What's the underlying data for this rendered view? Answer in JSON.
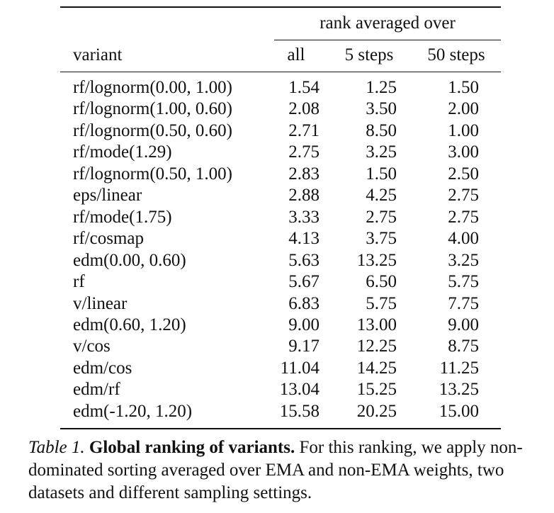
{
  "table": {
    "group_header": "rank averaged over",
    "columns": [
      "variant",
      "all",
      "5 steps",
      "50 steps"
    ],
    "rows": [
      [
        "rf/lognorm(0.00, 1.00)",
        "1.54",
        "1.25",
        "1.50"
      ],
      [
        "rf/lognorm(1.00, 0.60)",
        "2.08",
        "3.50",
        "2.00"
      ],
      [
        "rf/lognorm(0.50, 0.60)",
        "2.71",
        "8.50",
        "1.00"
      ],
      [
        "rf/mode(1.29)",
        "2.75",
        "3.25",
        "3.00"
      ],
      [
        "rf/lognorm(0.50, 1.00)",
        "2.83",
        "1.50",
        "2.50"
      ],
      [
        "eps/linear",
        "2.88",
        "4.25",
        "2.75"
      ],
      [
        "rf/mode(1.75)",
        "3.33",
        "2.75",
        "2.75"
      ],
      [
        "rf/cosmap",
        "4.13",
        "3.75",
        "4.00"
      ],
      [
        "edm(0.00, 0.60)",
        "5.63",
        "13.25",
        "3.25"
      ],
      [
        "rf",
        "5.67",
        "6.50",
        "5.75"
      ],
      [
        "v/linear",
        "6.83",
        "5.75",
        "7.75"
      ],
      [
        "edm(0.60, 1.20)",
        "9.00",
        "13.00",
        "9.00"
      ],
      [
        "v/cos",
        "9.17",
        "12.25",
        "8.75"
      ],
      [
        "edm/cos",
        "11.04",
        "14.25",
        "11.25"
      ],
      [
        "edm/rf",
        "13.04",
        "15.25",
        "13.25"
      ],
      [
        "edm(-1.20, 1.20)",
        "15.58",
        "20.25",
        "15.00"
      ]
    ]
  },
  "caption": {
    "label": "Table 1.",
    "title": "Global ranking of variants.",
    "body": "For this ranking, we apply non-dominated sorting averaged over EMA and non-EMA weights, two datasets and different sampling settings."
  }
}
